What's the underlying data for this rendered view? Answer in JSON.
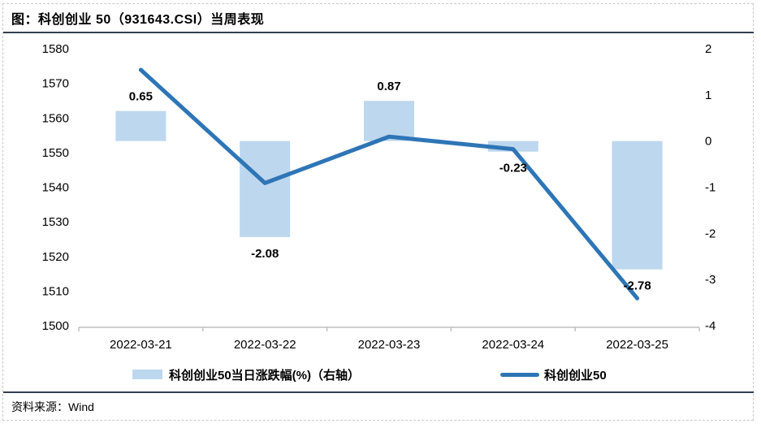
{
  "header": {
    "title": "图：科创创业 50（931643.CSI）当周表现"
  },
  "footer": {
    "source": "资料来源：Wind"
  },
  "colors": {
    "bar_fill": "#BDD7EE",
    "line_stroke": "#2E75B6",
    "data_label": "#FF0000",
    "divider": "#333F50",
    "axis_line": "#BFBFBF",
    "frame_dash": "#C9C9C9",
    "text": "#000000"
  },
  "chart_data": {
    "type": "combo",
    "title": "图：科创创业 50（931643.CSI）当周表现",
    "categories": [
      "2022-03-21",
      "2022-03-22",
      "2022-03-23",
      "2022-03-24",
      "2022-03-25"
    ],
    "series": [
      {
        "name": "科创创业50当日涨跌幅(%)（右轴）",
        "type": "bar",
        "axis": "right",
        "values": [
          0.65,
          -2.08,
          0.87,
          -0.23,
          -2.78
        ],
        "labels": [
          "0.65",
          "-2.08",
          "0.87",
          "-0.23",
          "-2.78"
        ],
        "color": "#BDD7EE",
        "label_color": "#FF0000"
      },
      {
        "name": "科创创业50",
        "type": "line",
        "axis": "left",
        "values": [
          1573.9,
          1541.2,
          1554.6,
          1551.0,
          1507.9
        ],
        "color": "#2E75B6"
      }
    ],
    "left_axis": {
      "min": 1500,
      "max": 1580,
      "step": 10,
      "ticks": [
        1580,
        1570,
        1560,
        1550,
        1540,
        1530,
        1520,
        1510,
        1500
      ]
    },
    "right_axis": {
      "min": -4,
      "max": 2,
      "step": 1,
      "ticks": [
        2,
        1,
        0,
        -1,
        -2,
        -3,
        -4
      ]
    },
    "grid": false,
    "legend_position": "bottom"
  }
}
